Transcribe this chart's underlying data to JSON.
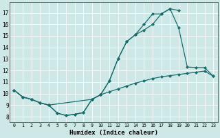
{
  "bg_color": "#cee8e8",
  "line_color": "#1a6b6b",
  "xlabel": "Humidex (Indice chaleur)",
  "xlim": [
    -0.5,
    23.5
  ],
  "ylim": [
    7.5,
    17.9
  ],
  "yticks": [
    8,
    9,
    10,
    11,
    12,
    13,
    14,
    15,
    16,
    17
  ],
  "xticks": [
    0,
    1,
    2,
    3,
    4,
    5,
    6,
    7,
    8,
    9,
    10,
    11,
    12,
    13,
    14,
    15,
    16,
    17,
    18,
    19,
    20,
    21,
    22,
    23
  ],
  "line1_x": [
    0,
    1,
    2,
    3,
    4,
    5,
    6,
    7,
    8,
    9,
    10,
    11,
    12,
    13,
    14,
    15,
    16,
    17,
    18,
    19
  ],
  "line1_y": [
    10.3,
    9.7,
    9.5,
    9.2,
    9.0,
    8.3,
    8.1,
    8.2,
    8.35,
    9.5,
    9.9,
    11.1,
    13.0,
    14.5,
    15.1,
    16.0,
    16.9,
    16.9,
    17.35,
    17.2
  ],
  "line2_x": [
    0,
    1,
    2,
    3,
    4,
    9,
    10,
    11,
    12,
    13,
    14,
    15,
    16,
    17,
    18,
    19,
    20,
    21,
    22,
    23
  ],
  "line2_y": [
    10.3,
    9.7,
    9.5,
    9.2,
    9.0,
    9.5,
    9.9,
    11.1,
    13.0,
    14.5,
    15.1,
    15.5,
    16.0,
    16.9,
    17.35,
    15.7,
    12.3,
    12.25,
    12.25,
    11.5
  ],
  "line3_x": [
    0,
    1,
    2,
    3,
    4,
    5,
    6,
    7,
    8,
    9,
    10,
    11,
    12,
    13,
    14,
    15,
    16,
    17,
    18,
    19,
    20,
    21,
    22,
    23
  ],
  "line3_y": [
    10.3,
    9.7,
    9.5,
    9.2,
    9.0,
    8.3,
    8.1,
    8.2,
    8.35,
    9.5,
    9.9,
    10.15,
    10.4,
    10.65,
    10.9,
    11.1,
    11.3,
    11.45,
    11.55,
    11.65,
    11.75,
    11.85,
    11.95,
    11.5
  ]
}
